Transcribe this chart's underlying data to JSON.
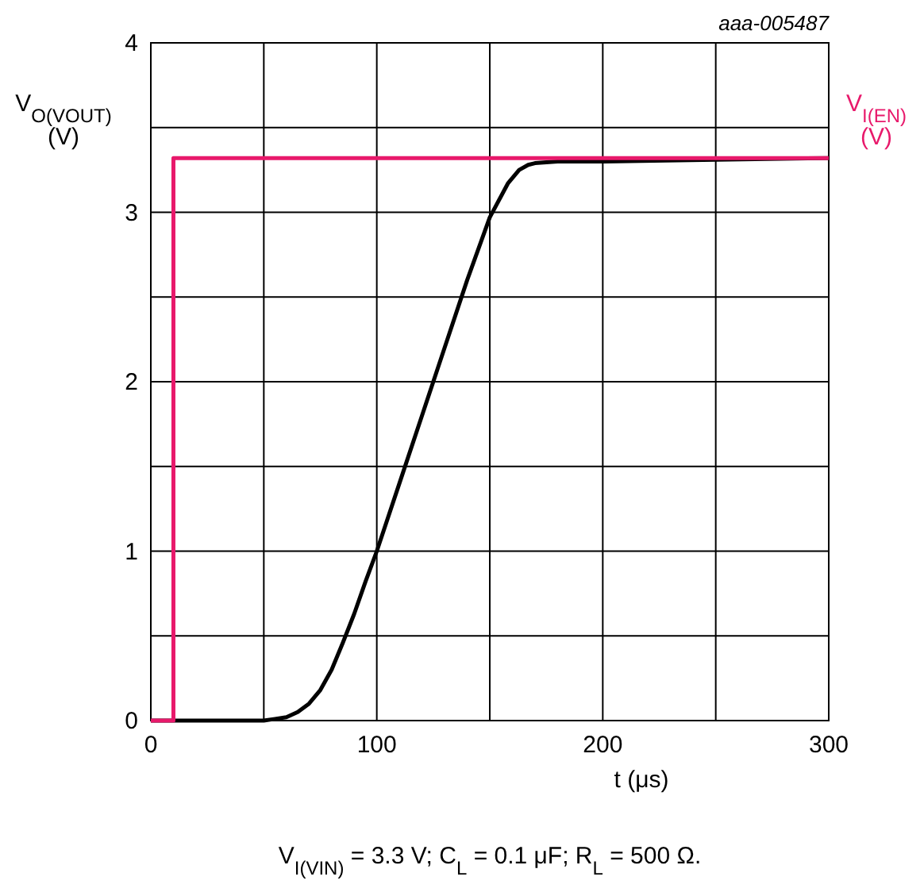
{
  "chart_data": {
    "type": "line",
    "ylabel": "V$_{O(VOUT)}$\n(V)",
    "y2label": "V$_{I(EN)}$\n(V)",
    "xlabel": "t (μs)",
    "annotations": [
      "aaa-005487",
      "V$_{I(VIN)}$ = 3.3 V; C$_{L}$ = 0.1 μF; R$_{L}$ = 500 Ω."
    ],
    "xlim": [
      0,
      300
    ],
    "ylim": [
      0,
      4
    ],
    "xticks": [
      0,
      {
        "value": 50,
        "label": null
      },
      100,
      {
        "value": 150,
        "label": null
      },
      200,
      {
        "value": 250,
        "label": null
      },
      300
    ],
    "yticks": [
      0,
      {
        "value": 0.5,
        "label": null
      },
      1,
      {
        "value": 1.5,
        "label": null
      },
      2,
      {
        "value": 2.5,
        "label": null
      },
      3,
      {
        "value": 3.5,
        "label": null
      },
      4
    ],
    "grid": true,
    "line_style": "solid",
    "marker": "none",
    "series": [
      {
        "color": "#000000",
        "x": [
          0,
          40,
          50,
          55,
          60,
          65,
          70,
          75,
          80,
          85,
          90,
          95,
          100,
          110,
          120,
          130,
          140,
          150,
          158,
          163,
          167,
          170,
          180,
          200,
          250,
          300
        ],
        "values": [
          0,
          0,
          0,
          0.01,
          0.02,
          0.05,
          0.1,
          0.18,
          0.3,
          0.46,
          0.63,
          0.82,
          1.0,
          1.4,
          1.8,
          2.2,
          2.6,
          2.97,
          3.17,
          3.25,
          3.28,
          3.29,
          3.3,
          3.3,
          3.31,
          3.32
        ]
      },
      {
        "color": "#e8196b",
        "x": [
          0,
          10,
          10,
          300
        ],
        "values": [
          0,
          0,
          3.32,
          3.32
        ]
      }
    ]
  }
}
